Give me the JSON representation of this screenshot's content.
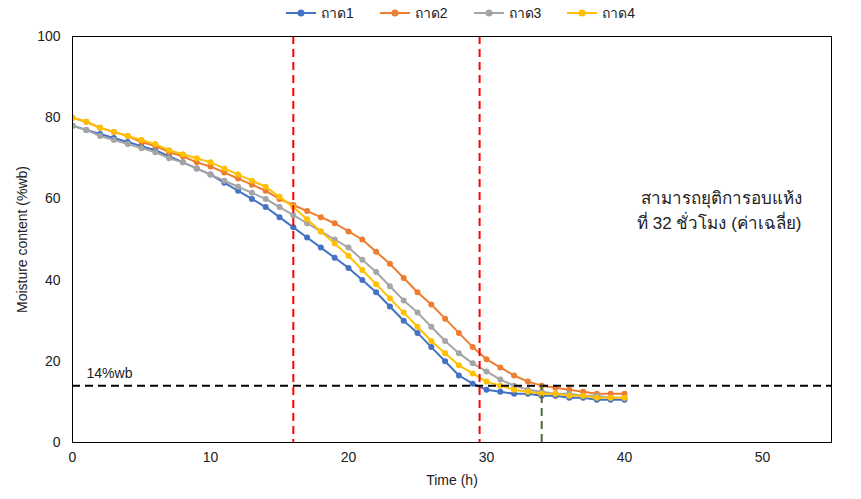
{
  "chart_data": {
    "type": "line",
    "x_label": "Time (h)",
    "y_label": "Moisture content (%wb)",
    "xlim": [
      0,
      55
    ],
    "xticks": [
      0,
      10,
      20,
      30,
      40,
      50
    ],
    "ylim": [
      0,
      100
    ],
    "yticks": [
      0,
      20,
      40,
      60,
      80,
      100
    ],
    "grid": false,
    "legend": "top",
    "marker": "circle",
    "x": [
      0,
      1,
      2,
      3,
      4,
      5,
      6,
      7,
      8,
      9,
      10,
      11,
      12,
      13,
      14,
      15,
      16,
      17,
      18,
      19,
      20,
      21,
      22,
      23,
      24,
      25,
      26,
      27,
      28,
      29,
      30,
      31,
      32,
      33,
      34,
      35,
      36,
      37,
      38,
      39,
      40
    ],
    "series": [
      {
        "name": "ถาด1",
        "color": "#4472C4",
        "values": [
          78,
          77,
          76,
          75,
          74,
          73,
          72,
          70.5,
          69,
          67.5,
          66,
          64,
          62,
          60,
          58,
          55.5,
          53,
          50.5,
          48,
          45.5,
          43,
          40,
          37,
          33.5,
          30,
          27,
          23.5,
          20,
          16.5,
          14.5,
          13,
          12.5,
          12,
          12,
          11.5,
          11.5,
          11,
          11,
          10.5,
          10.5,
          10.5
        ]
      },
      {
        "name": "ถาด2",
        "color": "#ED7D31",
        "values": [
          80,
          79,
          77.5,
          76.5,
          75.5,
          74,
          73,
          71.5,
          70.5,
          69,
          68,
          66.5,
          65,
          63.5,
          62,
          60,
          58.5,
          57,
          55.5,
          54,
          52,
          50,
          47,
          44,
          40.5,
          37,
          34,
          30.5,
          27,
          23.5,
          20.5,
          18.5,
          16.5,
          15,
          14,
          13.5,
          13,
          12.5,
          12,
          12,
          12
        ]
      },
      {
        "name": "ถาด3",
        "color": "#A5A5A5",
        "values": [
          78,
          77,
          75.5,
          74.5,
          73.5,
          72.5,
          71.5,
          70,
          69,
          67.5,
          66,
          64.5,
          63,
          61.5,
          60,
          58,
          56,
          54,
          52,
          50,
          48,
          45,
          42,
          38.5,
          35,
          32,
          28.5,
          25,
          22,
          19.5,
          17.5,
          15.5,
          14,
          13,
          12.5,
          12,
          12,
          11.5,
          11.5,
          11,
          11
        ]
      },
      {
        "name": "ถาด4",
        "color": "#FFC000",
        "values": [
          80,
          79,
          77.5,
          76.5,
          75.5,
          74.5,
          73.5,
          72,
          71,
          70,
          69,
          67.5,
          66,
          64.5,
          63,
          60.5,
          58,
          55,
          52,
          49,
          46,
          42.5,
          39,
          35.5,
          32,
          28.5,
          25,
          22,
          19,
          17,
          15,
          14,
          13,
          12.5,
          12,
          12,
          11.5,
          11.5,
          11,
          11,
          11
        ]
      }
    ],
    "hlines": [
      {
        "y": 14,
        "label": "14%wb",
        "color": "#000000",
        "line_style": "dashed"
      }
    ],
    "vlines": [
      {
        "x": 16,
        "color": "#FF0000",
        "line_style": "dashed"
      },
      {
        "x": 29.5,
        "color": "#FF0000",
        "line_style": "dashed"
      },
      {
        "x": 34,
        "y_to": 14,
        "color": "#4E6B3A",
        "line_style": "dashed"
      }
    ],
    "annotation": [
      "สามารถยุติการอบแห้ง",
      "ที่ 32 ชั่วโมง (ค่าเฉลี่ย)"
    ]
  }
}
